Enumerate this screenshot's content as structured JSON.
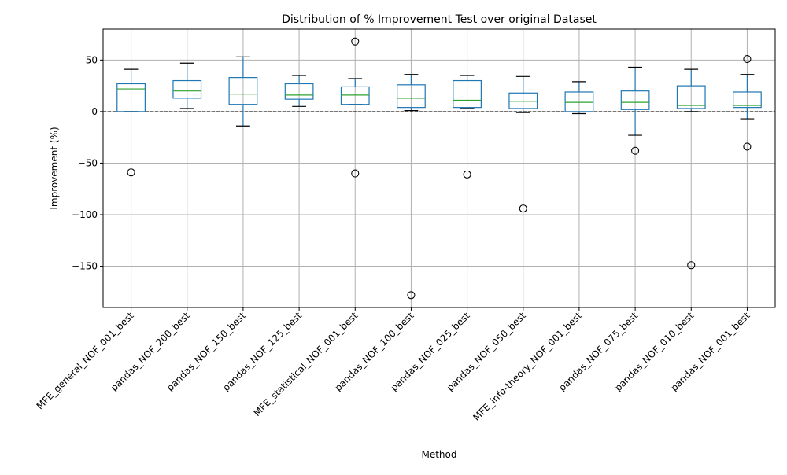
{
  "chart_data": {
    "type": "box",
    "title": "Distribution of % Improvement Test over original Dataset",
    "xlabel": "Method",
    "ylabel": "Improvement (%)",
    "ylim": [
      -190,
      80
    ],
    "yticks": [
      50,
      0,
      -50,
      -100,
      -150
    ],
    "grid": true,
    "reference_line": {
      "y": 0,
      "style": "dashed"
    },
    "colors": {
      "box": "#1f77b4",
      "median": "#2ca02c",
      "whisker_cap": "#000000",
      "grid": "#b0b0b0",
      "outlier": "#000000"
    },
    "categories": [
      "MFE_general_NOF_001_best",
      "pandas_NOF_200_best",
      "pandas_NOF_150_best",
      "pandas_NOF_125_best",
      "MFE_statistical_NOF_001_best",
      "pandas_NOF_100_best",
      "pandas_NOF_025_best",
      "pandas_NOF_050_best",
      "MFE_info-theory_NOF_001_best",
      "pandas_NOF_075_best",
      "pandas_NOF_010_best",
      "pandas_NOF_001_best"
    ],
    "boxes": [
      {
        "whislo": 0,
        "q1": 0,
        "med": 22,
        "q3": 27,
        "whishi": 41,
        "fliers": [
          -59
        ]
      },
      {
        "whislo": 3,
        "q1": 13,
        "med": 20,
        "q3": 30,
        "whishi": 47,
        "fliers": []
      },
      {
        "whislo": -14,
        "q1": 7,
        "med": 17,
        "q3": 33,
        "whishi": 53,
        "fliers": []
      },
      {
        "whislo": 5,
        "q1": 12,
        "med": 16,
        "q3": 27,
        "whishi": 35,
        "fliers": []
      },
      {
        "whislo": 7,
        "q1": 7,
        "med": 16,
        "q3": 24,
        "whishi": 32,
        "fliers": [
          68,
          -60
        ]
      },
      {
        "whislo": 1,
        "q1": 4,
        "med": 13,
        "q3": 26,
        "whishi": 36,
        "fliers": [
          -178
        ]
      },
      {
        "whislo": 3,
        "q1": 4,
        "med": 11,
        "q3": 30,
        "whishi": 35,
        "fliers": [
          -61
        ]
      },
      {
        "whislo": -1,
        "q1": 3,
        "med": 10,
        "q3": 18,
        "whishi": 34,
        "fliers": [
          -94
        ]
      },
      {
        "whislo": -2,
        "q1": 0,
        "med": 9,
        "q3": 19,
        "whishi": 29,
        "fliers": []
      },
      {
        "whislo": -23,
        "q1": 2,
        "med": 9,
        "q3": 20,
        "whishi": 43,
        "fliers": [
          -38
        ]
      },
      {
        "whislo": 0,
        "q1": 3,
        "med": 6,
        "q3": 25,
        "whishi": 41,
        "fliers": [
          -149
        ]
      },
      {
        "whislo": -7,
        "q1": 4,
        "med": 6,
        "q3": 19,
        "whishi": 36,
        "fliers": [
          51,
          -34
        ]
      }
    ]
  }
}
